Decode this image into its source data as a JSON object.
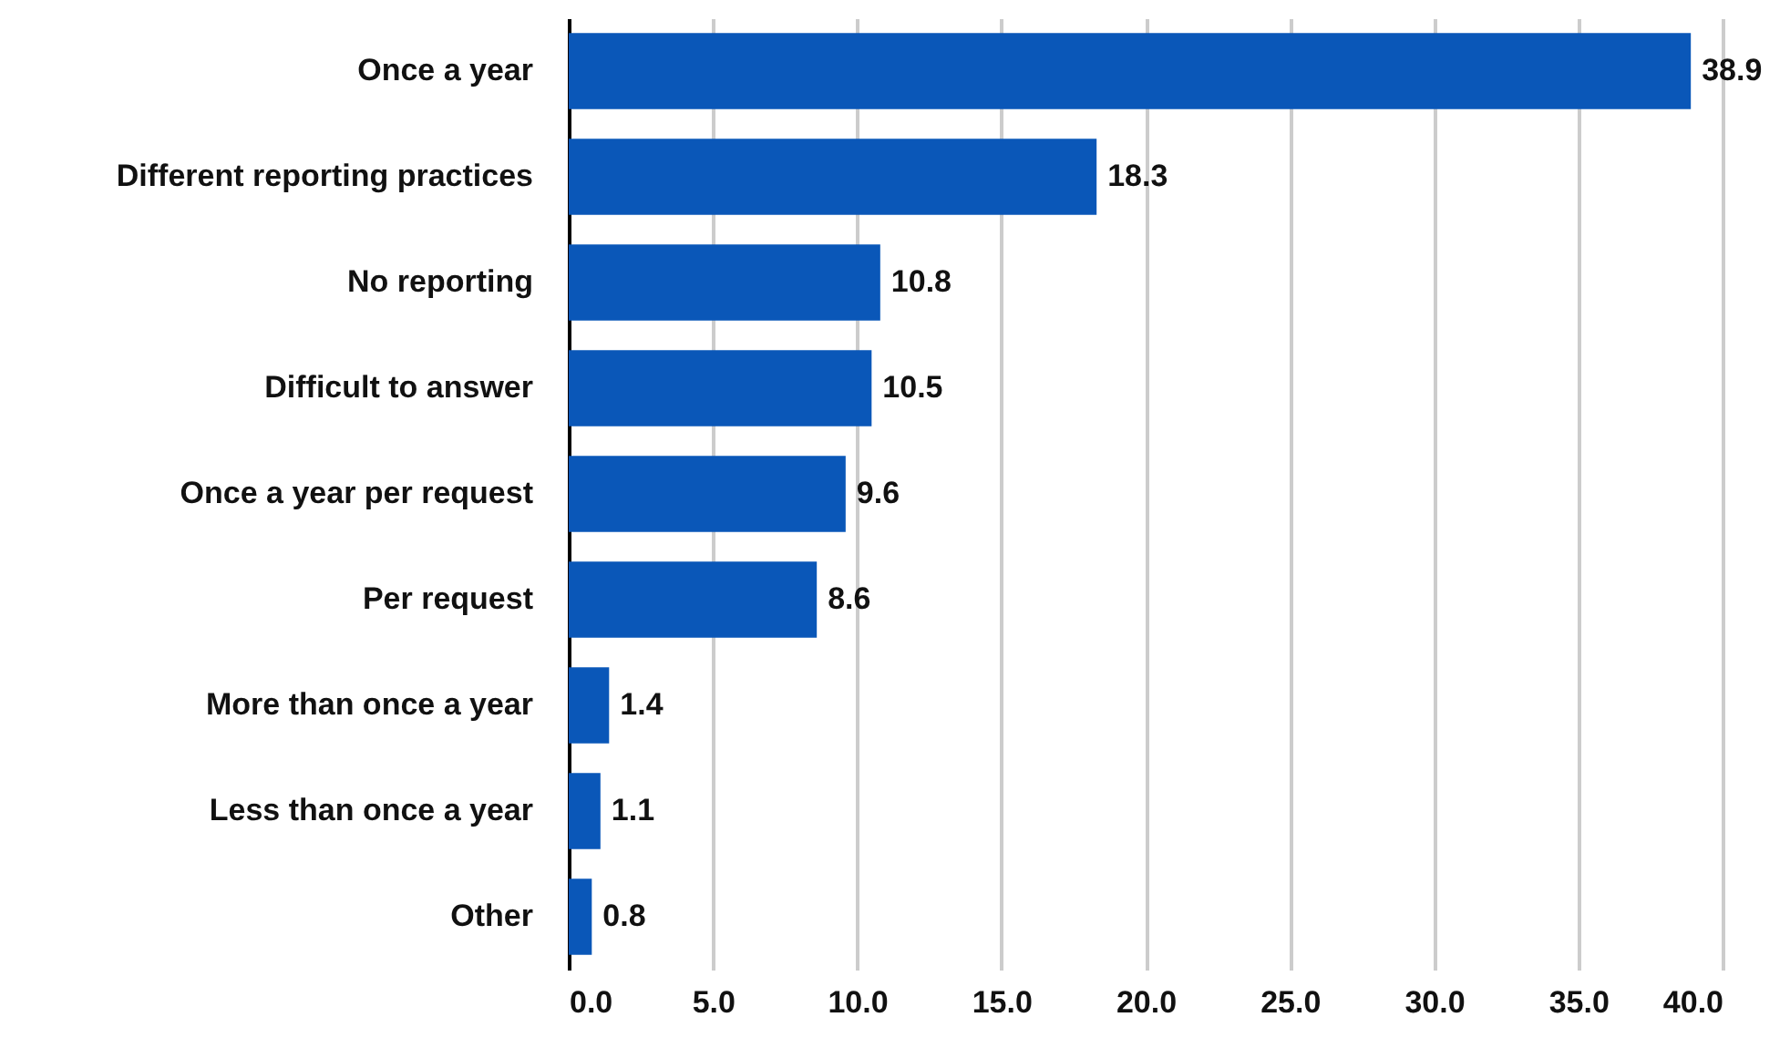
{
  "chart_data": {
    "type": "bar",
    "orientation": "horizontal",
    "categories": [
      "Once a year",
      "Different reporting practices",
      "No reporting",
      "Difficult to answer",
      "Once a year per request",
      "Per request",
      "More than once a year",
      "Less than once a year",
      "Other"
    ],
    "values": [
      38.9,
      18.3,
      10.8,
      10.5,
      9.6,
      8.6,
      1.4,
      1.1,
      0.8
    ],
    "color": "#0a57b8",
    "xlim": [
      0,
      40
    ],
    "xticks": [
      {
        "value": 0,
        "label": "0.0"
      },
      {
        "value": 5,
        "label": "5.0"
      },
      {
        "value": 10,
        "label": "10.0"
      },
      {
        "value": 15,
        "label": "15.0"
      },
      {
        "value": 20,
        "label": "20.0"
      },
      {
        "value": 25,
        "label": "25.0"
      },
      {
        "value": 30,
        "label": "30.0"
      },
      {
        "value": 35,
        "label": "35.0"
      },
      {
        "value": 40,
        "label": "40.0"
      }
    ],
    "grid": "x",
    "data_labels": true
  }
}
